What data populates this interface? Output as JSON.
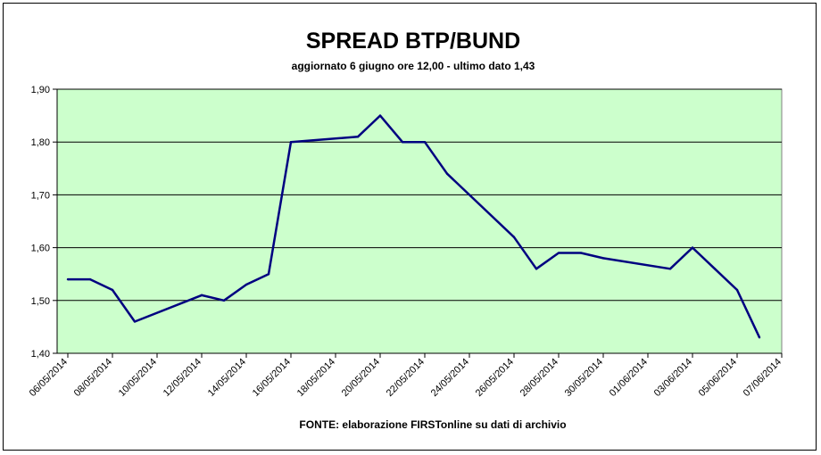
{
  "chart_data": {
    "type": "line",
    "title": "SPREAD BTP/BUND",
    "subtitle": "aggiornato 6 giugno ore 12,00 - ultimo dato 1,43",
    "source": "FONTE:  elaborazione FIRSTonline su dati di archivio",
    "xlabel": "",
    "ylabel": "",
    "ylim": [
      1.4,
      1.9
    ],
    "y_ticks": [
      "1,40",
      "1,50",
      "1,60",
      "1,70",
      "1,80",
      "1,90"
    ],
    "x_tick_labels": [
      "06/05/2014",
      "08/05/2014",
      "10/05/2014",
      "12/05/2014",
      "14/05/2014",
      "16/05/2014",
      "18/05/2014",
      "20/05/2014",
      "22/05/2014",
      "24/05/2014",
      "26/05/2014",
      "28/05/2014",
      "30/05/2014",
      "01/06/2014",
      "03/06/2014",
      "05/06/2014",
      "07/06/2014"
    ],
    "grid": true,
    "legend": "none",
    "colors": {
      "plot_background": "#ccffcc",
      "line": "#000080",
      "gridline": "#000000"
    },
    "series": [
      {
        "x": [
          "06/05/2014",
          "07/05/2014",
          "08/05/2014",
          "09/05/2014",
          "12/05/2014",
          "13/05/2014",
          "14/05/2014",
          "15/05/2014",
          "16/05/2014",
          "19/05/2014",
          "20/05/2014",
          "21/05/2014",
          "22/05/2014",
          "23/05/2014",
          "26/05/2014",
          "27/05/2014",
          "28/05/2014",
          "29/05/2014",
          "30/05/2014",
          "02/06/2014",
          "03/06/2014",
          "04/06/2014",
          "05/06/2014",
          "06/06/2014"
        ],
        "values": [
          1.54,
          1.54,
          1.52,
          1.46,
          1.51,
          1.5,
          1.53,
          1.55,
          1.8,
          1.81,
          1.85,
          1.8,
          1.8,
          1.74,
          1.62,
          1.56,
          1.59,
          1.59,
          1.58,
          1.56,
          1.6,
          1.56,
          1.52,
          1.43
        ]
      }
    ]
  }
}
